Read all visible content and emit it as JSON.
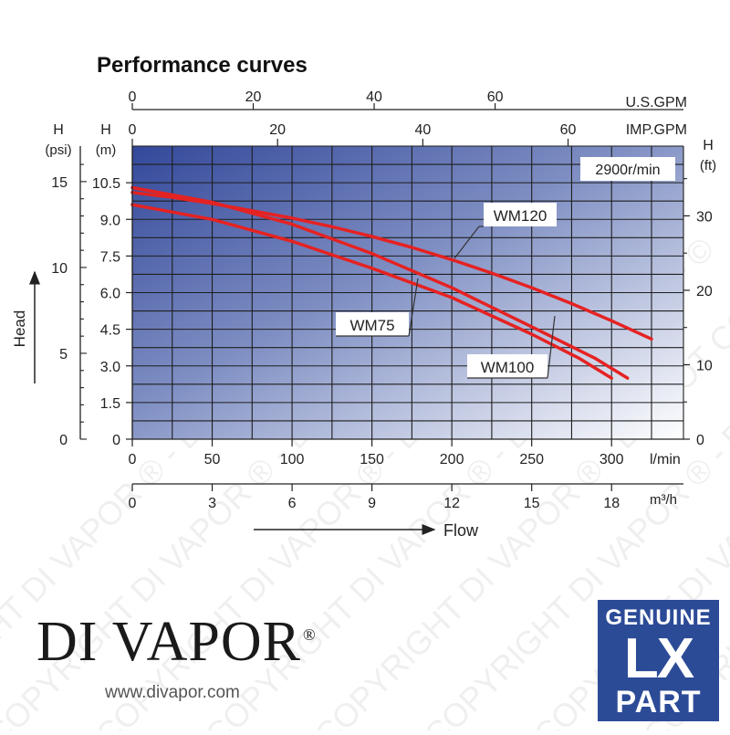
{
  "chart_data": {
    "type": "line",
    "title": "Performance curves",
    "annotation": "2900r/min",
    "xlabel": "Flow",
    "x_ticks_lmin": [
      "0",
      "50",
      "100",
      "150",
      "200",
      "250",
      "300"
    ],
    "x_unit_lmin": "l/min",
    "x_ticks_m3h": [
      "0",
      "3",
      "6",
      "9",
      "12",
      "15",
      "18"
    ],
    "x_unit_m3h": "m³/h",
    "x_ticks_usgpm": [
      "0",
      "20",
      "40",
      "60"
    ],
    "x_unit_usgpm": "U.S.GPM",
    "x_ticks_impgpm": [
      "0",
      "20",
      "40",
      "60"
    ],
    "x_unit_impgpm": "IMP.GPM",
    "ylabel": "Head",
    "y_ticks_m": [
      "0",
      "1.5",
      "3.0",
      "4.5",
      "6.0",
      "7.5",
      "9.0",
      "10.5"
    ],
    "y_unit_m": "(m)",
    "y_ticks_psi": [
      "0",
      "5",
      "10",
      "15"
    ],
    "y_unit_psi": "(psi)",
    "y_ticks_ft": [
      "0",
      "10",
      "20",
      "30"
    ],
    "y_unit_ft": "(ft)",
    "y_axis_letter": "H",
    "xlim": [
      0,
      345
    ],
    "ylim": [
      0,
      12
    ],
    "grid": true,
    "series": [
      {
        "name": "WM120",
        "color": "#e52222",
        "x": [
          0,
          25,
          50,
          75,
          100,
          125,
          150,
          175,
          200,
          225,
          250,
          275,
          300,
          325
        ],
        "y": [
          10.1,
          9.9,
          9.65,
          9.35,
          9.05,
          8.7,
          8.3,
          7.85,
          7.35,
          6.8,
          6.2,
          5.55,
          4.85,
          4.1
        ]
      },
      {
        "name": "WM100",
        "color": "#e52222",
        "x": [
          0,
          50,
          100,
          150,
          200,
          250,
          290,
          310
        ],
        "y": [
          10.3,
          9.7,
          8.8,
          7.6,
          6.2,
          4.6,
          3.3,
          2.5
        ]
      },
      {
        "name": "WM75",
        "color": "#e52222",
        "x": [
          0,
          50,
          100,
          150,
          200,
          250,
          280,
          300
        ],
        "y": [
          9.6,
          9.0,
          8.1,
          7.0,
          5.8,
          4.3,
          3.3,
          2.5
        ]
      }
    ]
  },
  "brand": {
    "name": "DI VAPOR",
    "registered": "®",
    "url": "www.divapor.com"
  },
  "badge": {
    "line1": "GENUINE",
    "line2": "LX",
    "line3": "PART"
  },
  "watermark": "COPYRIGHT DI VAPOR ® - DO NOT COPY - ©"
}
